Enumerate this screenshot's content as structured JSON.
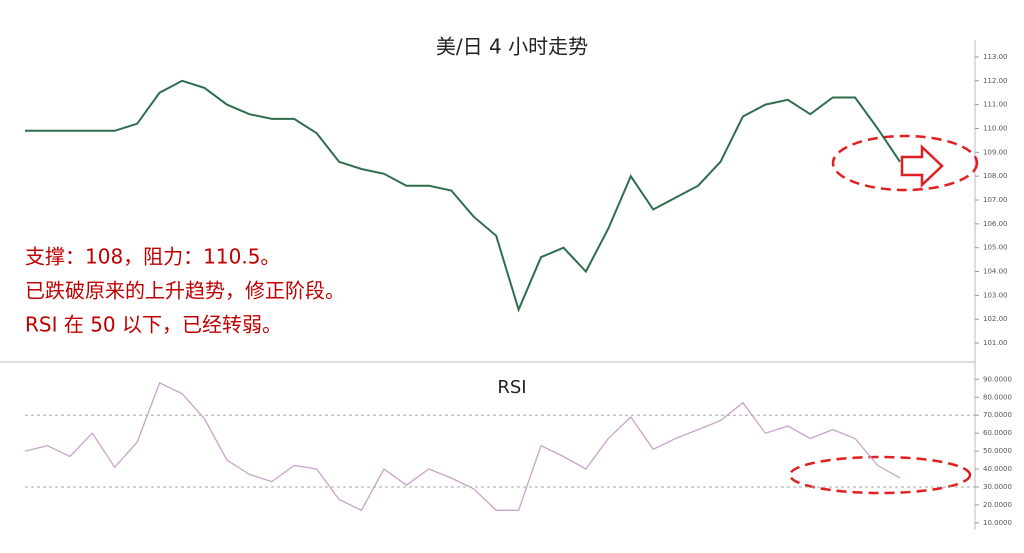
{
  "chart_data": [
    {
      "type": "line",
      "title": "美/日 4 小时走势",
      "annotations": [
        "支撑：108，阻力：110.5。",
        "已跌破原来的上升趋势，修正阶段。",
        "RSI 在 50 以下，已经转弱。"
      ],
      "values": [
        109.9,
        109.9,
        109.9,
        109.9,
        109.9,
        110.2,
        111.5,
        112.0,
        111.7,
        111.0,
        110.6,
        110.4,
        110.4,
        109.8,
        108.6,
        108.3,
        108.1,
        107.6,
        107.6,
        107.4,
        106.3,
        105.5,
        102.4,
        104.6,
        105.0,
        104.0,
        105.8,
        108.0,
        106.6,
        107.1,
        107.6,
        108.6,
        110.5,
        111.0,
        111.2,
        110.6,
        111.3,
        111.3,
        110.0,
        108.6
      ],
      "color": "#2f6e4c",
      "ylim": [
        100.5,
        113.5
      ],
      "yticks": [
        {
          "value": 101,
          "label": "101.00"
        },
        {
          "value": 102,
          "label": "102.00"
        },
        {
          "value": 103,
          "label": "103.00"
        },
        {
          "value": 104,
          "label": "104.00"
        },
        {
          "value": 105,
          "label": "105.00"
        },
        {
          "value": 106,
          "label": "106.00"
        },
        {
          "value": 107,
          "label": "107.00"
        },
        {
          "value": 108,
          "label": "108.00"
        },
        {
          "value": 109,
          "label": "109.00"
        },
        {
          "value": 110,
          "label": "110.00"
        },
        {
          "value": 111,
          "label": "111.00"
        },
        {
          "value": 112,
          "label": "112.00"
        },
        {
          "value": 113,
          "label": "113.00"
        }
      ]
    },
    {
      "type": "line",
      "title": "RSI",
      "values": [
        50,
        53,
        47,
        60,
        41,
        55,
        88,
        82,
        68,
        45,
        37,
        33,
        42,
        40,
        23,
        17,
        40,
        31,
        40,
        35,
        29,
        17,
        17,
        53,
        47,
        40,
        57,
        69,
        51,
        57,
        62,
        67,
        77,
        60,
        64,
        57,
        62,
        57,
        42,
        35
      ],
      "color": "#c9a3cc",
      "ylim": [
        6,
        98
      ],
      "hlines": [
        30,
        70
      ],
      "yticks": [
        {
          "value": 10,
          "label": "10.0000"
        },
        {
          "value": 20,
          "label": "20.0000"
        },
        {
          "value": 30,
          "label": "30.0000"
        },
        {
          "value": 40,
          "label": "40.0000"
        },
        {
          "value": 50,
          "label": "50.0000"
        },
        {
          "value": 60,
          "label": "60.0000"
        },
        {
          "value": 70,
          "label": "70.0000"
        },
        {
          "value": 80,
          "label": "80.0000"
        },
        {
          "value": 90,
          "label": "90.0000"
        }
      ]
    }
  ]
}
